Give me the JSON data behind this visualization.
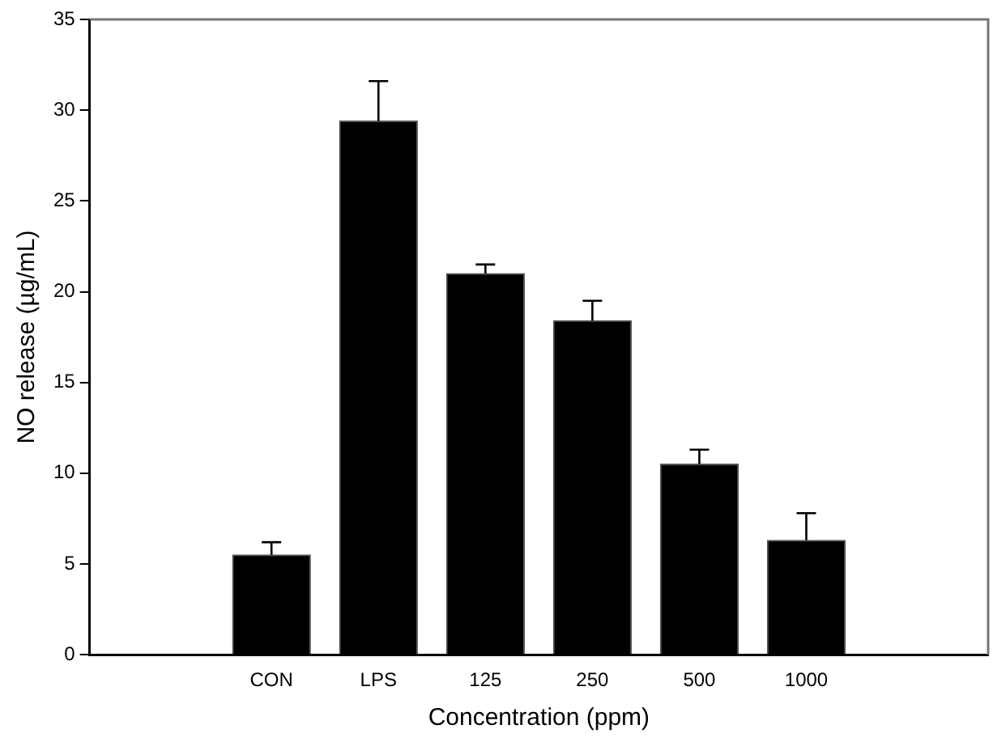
{
  "chart_data": {
    "type": "bar",
    "xlabel": "Concentration (ppm)",
    "ylabel": "NO release (µg/mL)",
    "categories": [
      "CON",
      "LPS",
      "125",
      "250",
      "500",
      "1000"
    ],
    "values": [
      5.5,
      29.4,
      21.0,
      18.4,
      10.5,
      6.3
    ],
    "errors": [
      [
        5.5,
        6.2
      ],
      [
        29.4,
        31.6
      ],
      [
        21.0,
        21.5
      ],
      [
        18.4,
        19.5
      ],
      [
        10.5,
        11.3
      ],
      [
        6.3,
        7.8
      ]
    ],
    "color": "#000000",
    "ylim": [
      0,
      35
    ],
    "yticks": [
      0,
      5,
      10,
      15,
      20,
      25,
      30,
      35
    ],
    "grid": false,
    "legend": false
  }
}
